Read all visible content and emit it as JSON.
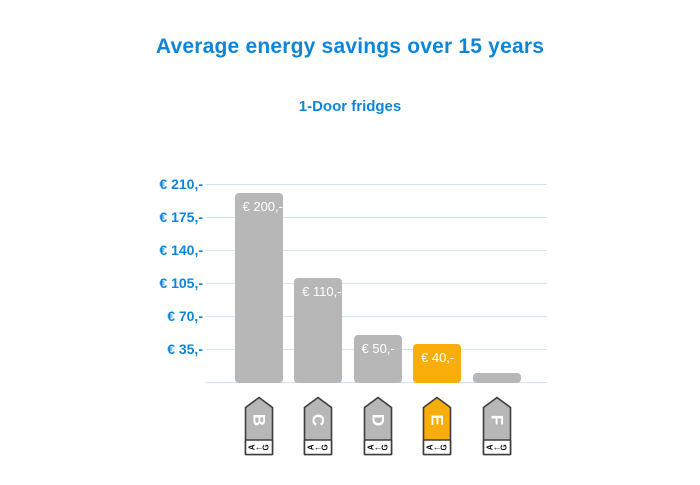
{
  "header": {
    "title": "Average energy savings over 15 years",
    "subtitle": "1-Door fridges"
  },
  "chart_data": {
    "type": "bar",
    "title": "Average energy savings over 15 years",
    "subtitle": "1-Door fridges",
    "categories": [
      "B",
      "C",
      "D",
      "E",
      "F"
    ],
    "values": [
      200,
      110,
      50,
      40,
      10
    ],
    "bar_labels": [
      "€ 200,-",
      "€ 110,-",
      "€ 50,-",
      "€ 40,-",
      ""
    ],
    "highlighted_category": "E",
    "xlabel": "",
    "ylabel": "",
    "ylim": [
      0,
      215
    ],
    "grid": true,
    "legend": "none",
    "y_ticks": [
      {
        "value": 210,
        "label": "€ 210,-"
      },
      {
        "value": 175,
        "label": "€ 175,-"
      },
      {
        "value": 140,
        "label": "€ 140,-"
      },
      {
        "value": 105,
        "label": "€ 105,-"
      },
      {
        "value": 70,
        "label": "€ 70,-"
      },
      {
        "value": 35,
        "label": "€ 35,-"
      }
    ],
    "x_axis_tags": {
      "style": "eu-energy-label",
      "scale_from": "A",
      "scale_to": "G",
      "arrow": "←"
    }
  },
  "colors": {
    "accent_blue": "#0d86da",
    "gridline": "#cde6f7",
    "bar_gray": "#b7b7b7",
    "bar_highlight_orange": "#f9ad0b",
    "bar_value_text": "#ffffff",
    "tag_border": "#3d3d3d",
    "tag_letter": "#ffffff",
    "tag_scale_text": "#111111",
    "background": "#ffffff"
  }
}
